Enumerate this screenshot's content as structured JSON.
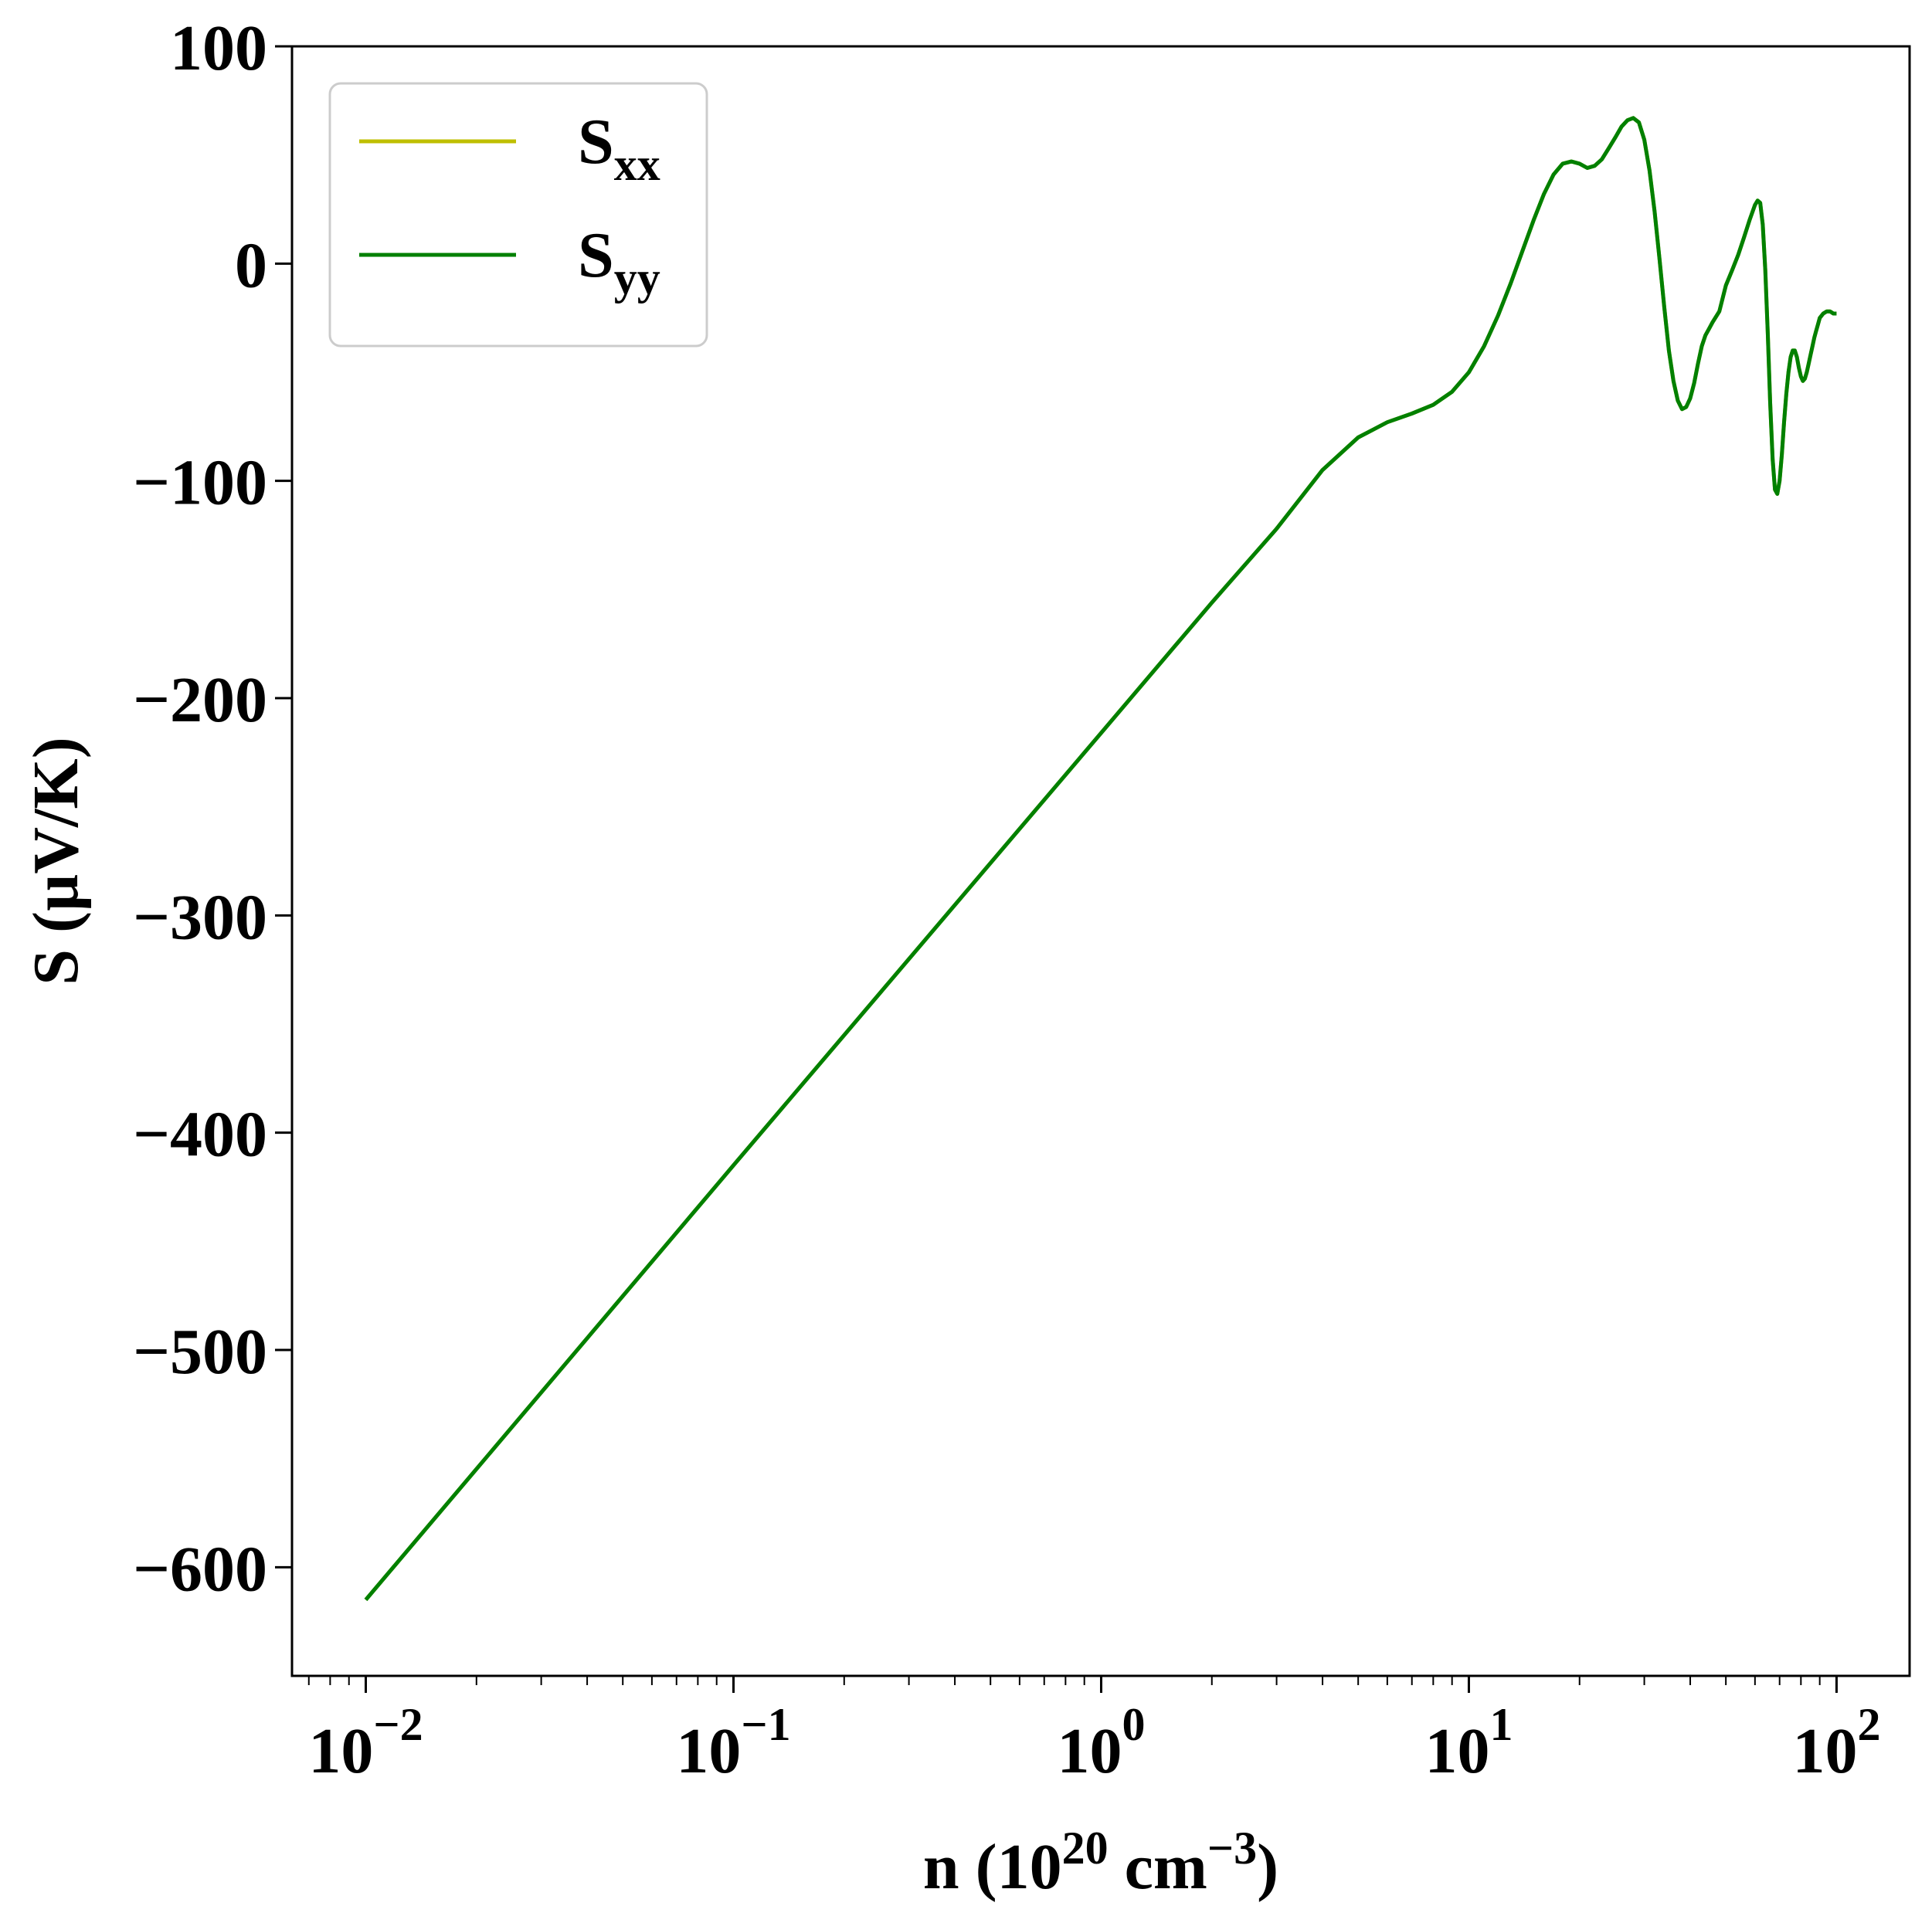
{
  "chart_data": {
    "type": "line",
    "xscale": "log",
    "xlim": [
      0.0063,
      158
    ],
    "ylim": [
      -650,
      100
    ],
    "xlabel": {
      "pre": "n (10",
      "sup1": "20",
      "mid": " cm",
      "sup2": "−3",
      "post": ")"
    },
    "ylabel": "S (µV/K)",
    "x_ticks": [
      {
        "value": 0.01,
        "base": "10",
        "exp": "−2"
      },
      {
        "value": 0.1,
        "base": "10",
        "exp": "−1"
      },
      {
        "value": 1,
        "base": "10",
        "exp": "0"
      },
      {
        "value": 10,
        "base": "10",
        "exp": "1"
      },
      {
        "value": 100,
        "base": "10",
        "exp": "2"
      }
    ],
    "y_ticks": [
      {
        "value": 100,
        "label": "100"
      },
      {
        "value": 0,
        "label": "0"
      },
      {
        "value": -100,
        "label": "−100"
      },
      {
        "value": -200,
        "label": "−200"
      },
      {
        "value": -300,
        "label": "−300"
      },
      {
        "value": -400,
        "label": "−400"
      },
      {
        "value": -500,
        "label": "−500"
      },
      {
        "value": -600,
        "label": "−600"
      }
    ],
    "legend": {
      "position": "top-left",
      "entries": [
        {
          "base": "S",
          "sub": "xx",
          "color": "#bfbf00"
        },
        {
          "base": "S",
          "sub": "yy",
          "color": "#008000"
        }
      ]
    },
    "series": [
      {
        "name": "Sxx",
        "color": "#bfbf00",
        "x": [
          0.01,
          0.1,
          1,
          2,
          3,
          4,
          5,
          6,
          7,
          8,
          9,
          10,
          11,
          12,
          13,
          14,
          15,
          16,
          17,
          18,
          19,
          20,
          21,
          22,
          23,
          24,
          25,
          26,
          27,
          28,
          29,
          30,
          31,
          32,
          33,
          34,
          35,
          36,
          37,
          38,
          39,
          40,
          41,
          42,
          43,
          44,
          45,
          46,
          48,
          50,
          52,
          54,
          56,
          58,
          60,
          61,
          62,
          63,
          64,
          65,
          66,
          67,
          68,
          69,
          70,
          71,
          72,
          73,
          74,
          75,
          76,
          77,
          78,
          79,
          80,
          81,
          82,
          83,
          84,
          85,
          86,
          87,
          88,
          89,
          90,
          92,
          94,
          96,
          98,
          100
        ],
        "y": [
          -615,
          -415,
          -216,
          -156,
          -122,
          -95,
          -80,
          -73,
          -69,
          -65,
          -59,
          -50,
          -38,
          -24,
          -9,
          6,
          20,
          32,
          41,
          46,
          47,
          46,
          44,
          45,
          48,
          53,
          58,
          63,
          66,
          67,
          65,
          57,
          43,
          24,
          2,
          -20,
          -40,
          -54,
          -63,
          -67,
          -66,
          -62,
          -55,
          -46,
          -38,
          -33,
          -30,
          -27,
          -22,
          -10,
          -3,
          4,
          12,
          20,
          27,
          29,
          28,
          18,
          -3,
          -32,
          -64,
          -90,
          -104,
          -106,
          -100,
          -88,
          -73,
          -60,
          -50,
          -43,
          -40,
          -40,
          -43,
          -48,
          -52,
          -54,
          -53,
          -50,
          -46,
          -42,
          -38,
          -34,
          -31,
          -28,
          -25,
          -23,
          -22,
          -22,
          -23,
          -23
        ]
      },
      {
        "name": "Syy",
        "color": "#008000",
        "x": [
          0.01,
          0.1,
          1,
          2,
          3,
          4,
          5,
          6,
          7,
          8,
          9,
          10,
          11,
          12,
          13,
          14,
          15,
          16,
          17,
          18,
          19,
          20,
          21,
          22,
          23,
          24,
          25,
          26,
          27,
          28,
          29,
          30,
          31,
          32,
          33,
          34,
          35,
          36,
          37,
          38,
          39,
          40,
          41,
          42,
          43,
          44,
          45,
          46,
          48,
          50,
          52,
          54,
          56,
          58,
          60,
          61,
          62,
          63,
          64,
          65,
          66,
          67,
          68,
          69,
          70,
          71,
          72,
          73,
          74,
          75,
          76,
          77,
          78,
          79,
          80,
          81,
          82,
          83,
          84,
          85,
          86,
          87,
          88,
          89,
          90,
          92,
          94,
          96,
          98,
          100
        ],
        "y": [
          -615,
          -415,
          -216,
          -156,
          -122,
          -95,
          -80,
          -73,
          -69,
          -65,
          -59,
          -50,
          -38,
          -24,
          -9,
          6,
          20,
          32,
          41,
          46,
          47,
          46,
          44,
          45,
          48,
          53,
          58,
          63,
          66,
          67,
          65,
          57,
          43,
          24,
          2,
          -20,
          -40,
          -54,
          -63,
          -67,
          -66,
          -62,
          -55,
          -46,
          -38,
          -33,
          -30,
          -27,
          -22,
          -10,
          -3,
          4,
          12,
          20,
          27,
          29,
          28,
          18,
          -3,
          -32,
          -64,
          -90,
          -104,
          -106,
          -100,
          -88,
          -73,
          -60,
          -50,
          -43,
          -40,
          -40,
          -43,
          -48,
          -52,
          -54,
          -53,
          -50,
          -46,
          -42,
          -38,
          -34,
          -31,
          -28,
          -25,
          -23,
          -22,
          -22,
          -23,
          -23
        ]
      }
    ]
  }
}
